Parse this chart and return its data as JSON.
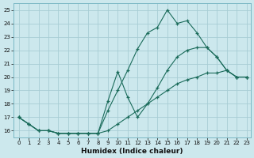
{
  "xlabel": "Humidex (Indice chaleur)",
  "bg_color": "#cce8ed",
  "grid_color": "#a8cdd4",
  "line_color": "#1a6b5a",
  "xlim_min": -0.5,
  "xlim_max": 23.4,
  "ylim_min": 15.5,
  "ylim_max": 25.5,
  "yticks": [
    16,
    17,
    18,
    19,
    20,
    21,
    22,
    23,
    24,
    25
  ],
  "xticks": [
    0,
    1,
    2,
    3,
    4,
    5,
    6,
    7,
    8,
    9,
    10,
    11,
    12,
    13,
    14,
    15,
    16,
    17,
    18,
    19,
    20,
    21,
    22,
    23
  ],
  "lines": [
    {
      "x": [
        0,
        1,
        2,
        3,
        4,
        5,
        6,
        7,
        8,
        9,
        10,
        11,
        12,
        13,
        14,
        15,
        16,
        17,
        18,
        19,
        20,
        21,
        22,
        23
      ],
      "y": [
        17.0,
        16.5,
        16.0,
        16.0,
        15.8,
        15.8,
        15.8,
        15.8,
        15.8,
        17.5,
        19.0,
        20.5,
        22.1,
        23.3,
        23.7,
        25.0,
        24.0,
        24.2,
        23.3,
        22.2,
        21.5,
        20.5,
        20.0,
        20.0
      ]
    },
    {
      "x": [
        0,
        1,
        2,
        3,
        4,
        5,
        6,
        7,
        8,
        9,
        10,
        11,
        12,
        13,
        14,
        15,
        16,
        17,
        18,
        19,
        20,
        21,
        22,
        23
      ],
      "y": [
        17.0,
        16.5,
        16.0,
        16.0,
        15.8,
        15.8,
        15.8,
        15.8,
        15.8,
        18.2,
        20.4,
        18.5,
        17.0,
        18.0,
        19.2,
        20.5,
        21.5,
        22.0,
        22.2,
        22.2,
        21.5,
        20.5,
        20.0,
        20.0
      ]
    },
    {
      "x": [
        0,
        1,
        2,
        3,
        4,
        5,
        6,
        7,
        8,
        9,
        10,
        11,
        12,
        13,
        14,
        15,
        16,
        17,
        18,
        19,
        20,
        21,
        22,
        23
      ],
      "y": [
        17.0,
        16.5,
        16.0,
        16.0,
        15.8,
        15.8,
        15.8,
        15.8,
        15.8,
        16.0,
        16.5,
        17.0,
        17.5,
        18.0,
        18.5,
        19.0,
        19.5,
        19.8,
        20.0,
        20.3,
        20.3,
        20.5,
        20.0,
        20.0
      ]
    }
  ]
}
